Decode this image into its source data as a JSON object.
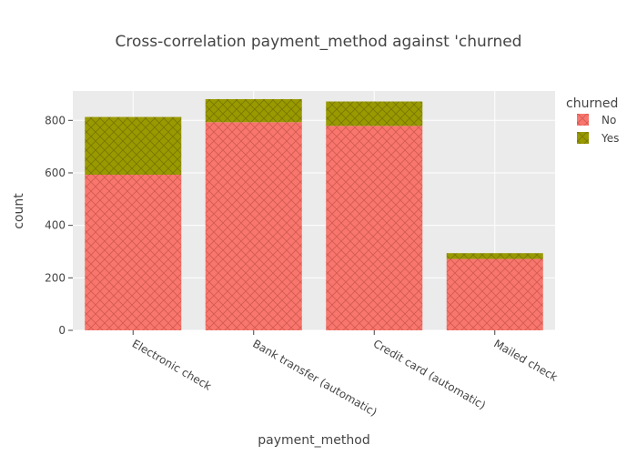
{
  "chart_data": {
    "type": "bar",
    "barmode": "stack",
    "title": "Cross-correlation payment_method against 'churned",
    "xlabel": "payment_method",
    "ylabel": "count",
    "categories": [
      "Electronic check",
      "Bank transfer (automatic)",
      "Credit card (automatic)",
      "Mailed check"
    ],
    "series": [
      {
        "name": "No",
        "values": [
          593,
          793,
          779,
          272
        ],
        "color": "#F8766D",
        "pattern": "crosshatch"
      },
      {
        "name": "Yes",
        "values": [
          220,
          88,
          93,
          22
        ],
        "color": "#999900",
        "pattern": "crosshatch"
      }
    ],
    "ylim": [
      0,
      912
    ],
    "yticks": [
      0,
      200,
      400,
      600,
      800
    ],
    "grid": true,
    "legend": {
      "title": "churned",
      "placement": "top-right"
    },
    "plot_background": "#ebebeb"
  }
}
